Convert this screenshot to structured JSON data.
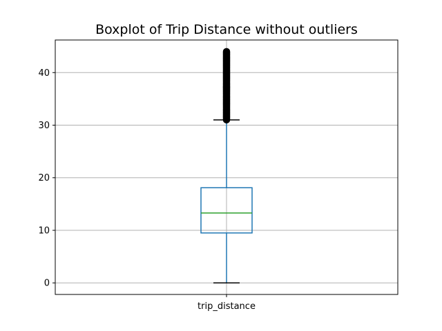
{
  "chart_data": {
    "type": "boxplot",
    "title": "Boxplot of Trip Distance without outliers",
    "xlabel": "",
    "ylabel": "",
    "categories": [
      "trip_distance"
    ],
    "ylim": [
      -2.2,
      46.2
    ],
    "yticks": [
      0,
      10,
      20,
      30,
      40
    ],
    "grid": true,
    "box": {
      "whisker_low": 0,
      "q1": 9.5,
      "median": 13.3,
      "q3": 18.1,
      "whisker_high": 31.0,
      "outlier_range": [
        31.0,
        44.0
      ]
    },
    "colors": {
      "box": "#1f77b4",
      "median": "#2ca02c",
      "caps": "#000000",
      "outliers": "#000000",
      "grid": "#b0b0b0"
    }
  }
}
